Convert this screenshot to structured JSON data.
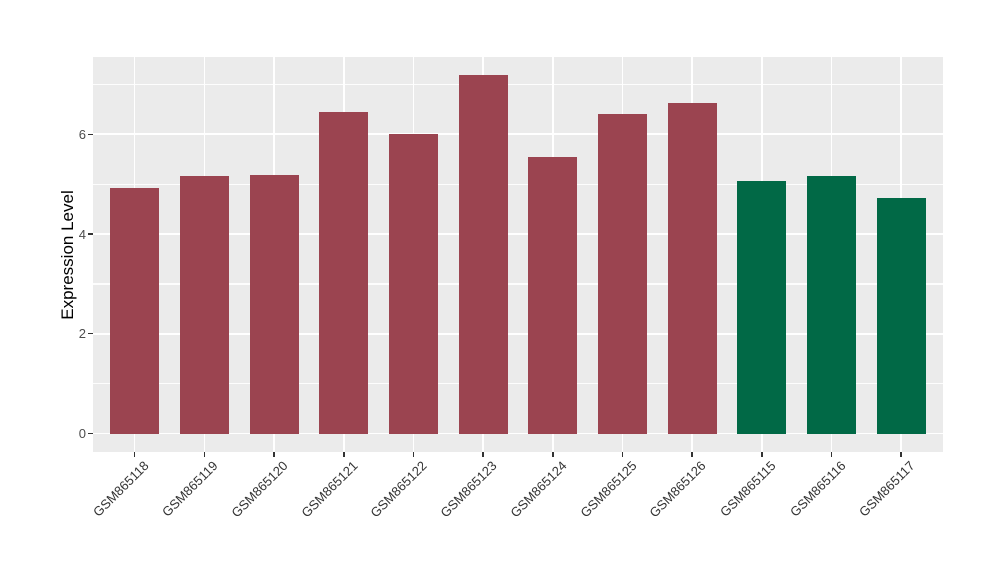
{
  "chart_data": {
    "type": "bar",
    "title": "",
    "xlabel": "",
    "ylabel": "Expression Level",
    "categories": [
      "GSM865118",
      "GSM865119",
      "GSM865120",
      "GSM865121",
      "GSM865122",
      "GSM865123",
      "GSM865124",
      "GSM865125",
      "GSM865126",
      "GSM865115",
      "GSM865116",
      "GSM865117"
    ],
    "values": [
      4.92,
      5.16,
      5.19,
      6.45,
      6.01,
      7.18,
      5.54,
      6.4,
      6.62,
      5.07,
      5.16,
      4.73
    ],
    "bar_colors": [
      "#9B4450",
      "#9B4450",
      "#9B4450",
      "#9B4450",
      "#9B4450",
      "#9B4450",
      "#9B4450",
      "#9B4450",
      "#9B4450",
      "#016946",
      "#016946",
      "#016946"
    ],
    "yticks": [
      0,
      2,
      4,
      6
    ],
    "ylim": [
      -0.37,
      7.55
    ],
    "x_tick_label_angle": -45,
    "legend_position": "none",
    "grid": "on",
    "panel_bg": "#EBEBEB",
    "grid_color": "#FFFFFF",
    "axis_text_color": "#4D4D4D",
    "axis_tick_color": "#333333"
  }
}
